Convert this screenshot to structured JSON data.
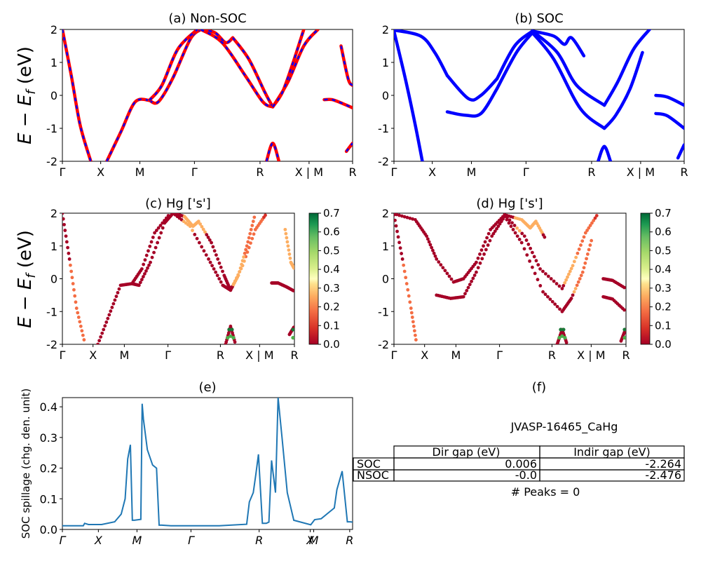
{
  "figure_label": "JVASP-16465_CaHg",
  "ylabel": "E − E_f (eV)",
  "ylabel_main": "E − E",
  "ylabel_sub": "f",
  "ylabel_unit": " (eV)",
  "path_labels_ab": [
    "Γ",
    "X",
    "M",
    "Γ",
    "R",
    "X | M",
    "R"
  ],
  "path_labels_e": [
    "Γ",
    "X",
    "M",
    "Γ",
    "R",
    "X",
    "M",
    "R"
  ],
  "colorbar_ticks": [
    "0.0",
    "0.1",
    "0.2",
    "0.3",
    "0.4",
    "0.5",
    "0.6",
    "0.7"
  ],
  "peaks_text": "# Peaks = 0",
  "colors": {
    "nonsoc_line": "#ff0000",
    "nonsoc_dash": "#0000ff",
    "soc_line": "#0000ff",
    "spillage": "#1f77b4"
  },
  "chart_data": [
    {
      "type": "line",
      "title": "(a) Non-SOC",
      "ylim": [
        -2,
        2
      ],
      "yticks": [
        -2,
        -1,
        0,
        1,
        2
      ],
      "x_labels": [
        "Γ",
        "X",
        "M",
        "Γ",
        "R",
        "X | M",
        "R"
      ],
      "series_note": "red solid bands overlaid with blue dashed bands",
      "bands": [
        {
          "x": [
            0,
            0.5,
            1.0,
            1.6
          ],
          "y": [
            2.0,
            0.6,
            -0.9,
            -2.0
          ]
        },
        {
          "x": [
            2.5,
            3.3,
            4.1,
            4.9
          ],
          "y": [
            -2.0,
            -1.1,
            -0.2,
            -0.15
          ]
        },
        {
          "x": [
            4.9,
            5.4,
            6.2,
            7.2,
            7.8
          ],
          "y": [
            -0.15,
            -0.2,
            0.5,
            1.7,
            2.0
          ]
        },
        {
          "x": [
            4.9,
            5.6,
            6.5,
            7.6
          ],
          "y": [
            -0.15,
            0.3,
            1.4,
            2.0
          ]
        },
        {
          "x": [
            7.8,
            8.6,
            9.2,
            9.6
          ],
          "y": [
            2.0,
            1.9,
            1.6,
            1.75
          ]
        },
        {
          "x": [
            7.8,
            9.0,
            10.3,
            11.3,
            11.85
          ],
          "y": [
            2.0,
            1.6,
            0.6,
            -0.2,
            -0.35
          ]
        },
        {
          "x": [
            9.6,
            10.5,
            11.4,
            11.85
          ],
          "y": [
            1.75,
            1.1,
            0.1,
            -0.35
          ]
        },
        {
          "x": [
            11.85,
            12.7,
            13.6,
            14.4
          ],
          "y": [
            -0.35,
            0.4,
            1.5,
            2.0
          ]
        },
        {
          "x": [
            11.85,
            12.4,
            13.0,
            13.6
          ],
          "y": [
            -0.35,
            0.1,
            1.0,
            2.0
          ]
        },
        {
          "x": [
            11.5,
            11.85,
            12.2
          ],
          "y": [
            -2.0,
            -1.45,
            -2.0
          ]
        },
        {
          "x": [
            14.75,
            15.2,
            15.8,
            16.35
          ],
          "y": [
            -0.13,
            -0.13,
            -0.25,
            -0.38
          ]
        },
        {
          "x": [
            15.7,
            16.1,
            16.35
          ],
          "y": [
            1.5,
            0.5,
            0.3
          ]
        },
        {
          "x": [
            16.0,
            16.35
          ],
          "y": [
            -1.7,
            -1.45
          ]
        }
      ]
    },
    {
      "type": "line",
      "title": "(b) SOC",
      "ylim": [
        -2,
        2
      ],
      "yticks": [
        -2,
        -1,
        0,
        1,
        2
      ],
      "x_labels": [
        "Γ",
        "X",
        "M",
        "Γ",
        "R",
        "X | M",
        "R"
      ],
      "bands": [
        {
          "x": [
            0,
            0.6,
            1.2,
            1.6
          ],
          "y": [
            1.95,
            0.6,
            -0.9,
            -2.0
          ]
        },
        {
          "x": [
            0,
            1.5,
            2.3,
            3.0
          ],
          "y": [
            1.98,
            1.8,
            1.3,
            0.6
          ]
        },
        {
          "x": [
            3.0,
            4.2,
            4.9,
            5.8
          ],
          "y": [
            0.6,
            -0.1,
            0.0,
            0.5
          ]
        },
        {
          "x": [
            3.0,
            4.0,
            4.9,
            5.8
          ],
          "y": [
            -0.5,
            -0.6,
            -0.55,
            0.2
          ]
        },
        {
          "x": [
            5.8,
            6.8,
            7.8
          ],
          "y": [
            0.5,
            1.5,
            1.95
          ]
        },
        {
          "x": [
            5.8,
            6.9,
            7.8
          ],
          "y": [
            0.2,
            1.3,
            1.9
          ]
        },
        {
          "x": [
            7.8,
            9.2,
            10.3,
            11.85
          ],
          "y": [
            1.95,
            1.3,
            0.3,
            -0.3
          ]
        },
        {
          "x": [
            7.8,
            9.0,
            10.5,
            11.85
          ],
          "y": [
            1.9,
            1.1,
            -0.4,
            -1.0
          ]
        },
        {
          "x": [
            7.8,
            9.0,
            9.6,
            10.0,
            10.7
          ],
          "y": [
            1.95,
            1.8,
            1.55,
            1.75,
            1.2
          ]
        },
        {
          "x": [
            11.85,
            12.6,
            13.5,
            14.4
          ],
          "y": [
            -0.3,
            0.4,
            1.4,
            2.0
          ]
        },
        {
          "x": [
            11.85,
            12.5,
            13.3,
            14.0
          ],
          "y": [
            -1.0,
            -0.6,
            0.2,
            1.3
          ]
        },
        {
          "x": [
            11.5,
            11.85,
            12.2
          ],
          "y": [
            -2.0,
            -1.55,
            -2.0
          ]
        },
        {
          "x": [
            14.75,
            15.4,
            16.35
          ],
          "y": [
            0.0,
            -0.05,
            -0.3
          ]
        },
        {
          "x": [
            14.75,
            15.4,
            16.35
          ],
          "y": [
            -0.55,
            -0.62,
            -1.0
          ]
        },
        {
          "x": [
            16.0,
            16.35
          ],
          "y": [
            -1.9,
            -1.5
          ]
        }
      ]
    },
    {
      "type": "scatter",
      "title": "(c)  Hg ['s']",
      "ylim": [
        -2,
        2
      ],
      "yticks": [
        -2,
        -1,
        0,
        1,
        2
      ],
      "colorbar": [
        0.0,
        0.7
      ],
      "x_labels": [
        "Γ",
        "X",
        "M",
        "Γ",
        "R",
        "X | M",
        "R"
      ]
    },
    {
      "type": "scatter",
      "title": "(d) Hg ['s']",
      "ylim": [
        -2,
        2
      ],
      "yticks": [
        -2,
        -1,
        0,
        1,
        2
      ],
      "colorbar": [
        0.0,
        0.7
      ],
      "x_labels": [
        "Γ",
        "X",
        "M",
        "Γ",
        "R",
        "X | M",
        "R"
      ]
    },
    {
      "type": "line",
      "title": "(e)",
      "ylabel": "SOC spillage (chg. den. unit)",
      "ylim": [
        0.0,
        0.43
      ],
      "yticks": [
        0.0,
        0.1,
        0.2,
        0.3,
        0.4
      ],
      "x_labels": [
        "Γ",
        "X",
        "M",
        "Γ",
        "R",
        "X",
        "M",
        "R"
      ],
      "x": [
        0,
        1.6,
        1.7,
        2.0,
        3.0,
        4.0,
        4.5,
        4.8,
        5.0,
        5.2,
        5.35,
        5.5,
        6.0,
        6.1,
        6.2,
        6.5,
        6.9,
        7.2,
        7.4,
        7.6,
        8.3,
        12.0,
        14.1,
        14.3,
        14.6,
        14.8,
        15.0,
        15.3,
        15.6,
        15.8,
        16.0,
        16.3,
        16.5,
        16.8,
        17.2,
        17.7,
        19.0,
        19.3,
        19.8,
        20.8,
        21.0,
        21.4,
        21.8,
        22.0,
        22.2
      ],
      "y": [
        0.012,
        0.012,
        0.02,
        0.016,
        0.016,
        0.025,
        0.05,
        0.1,
        0.23,
        0.276,
        0.03,
        0.03,
        0.033,
        0.41,
        0.36,
        0.26,
        0.21,
        0.2,
        0.014,
        0.014,
        0.012,
        0.012,
        0.017,
        0.09,
        0.12,
        0.18,
        0.245,
        0.02,
        0.02,
        0.024,
        0.225,
        0.12,
        0.43,
        0.3,
        0.12,
        0.03,
        0.015,
        0.032,
        0.035,
        0.07,
        0.13,
        0.19,
        0.025,
        0.025,
        0.024
      ]
    },
    {
      "type": "table",
      "title": "(f)",
      "columns": [
        "",
        "Dir gap (eV)",
        "Indir gap (eV)"
      ],
      "rows": [
        [
          "SOC",
          "0.006",
          "-2.264"
        ],
        [
          "NSOC",
          "-0.0",
          "-2.476"
        ]
      ]
    }
  ]
}
